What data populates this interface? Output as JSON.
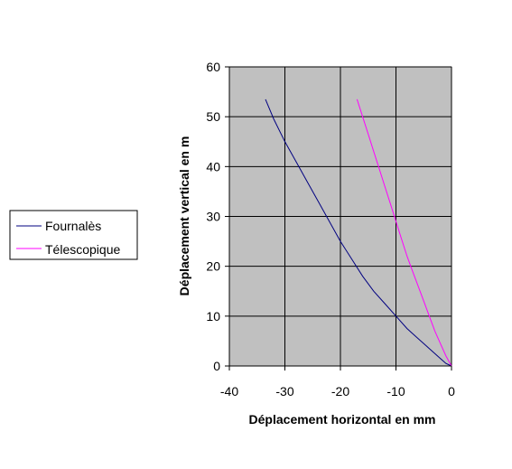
{
  "chart_data": {
    "type": "line",
    "xlabel": "Déplacement horizontal en mm",
    "ylabel": "Déplacement vertical en m",
    "xlim": [
      -40,
      0
    ],
    "ylim": [
      0,
      60
    ],
    "x_ticks": [
      -40,
      -30,
      -20,
      -10,
      0
    ],
    "y_ticks": [
      0,
      10,
      20,
      30,
      40,
      50,
      60
    ],
    "grid": true,
    "plot_background": "#c0c0c0",
    "legend_position": "left",
    "series": [
      {
        "name": "Fournalès",
        "color": "#000080",
        "points": [
          [
            0,
            0
          ],
          [
            -1,
            0.5
          ],
          [
            -2,
            1.5
          ],
          [
            -4,
            3.5
          ],
          [
            -6,
            5.5
          ],
          [
            -8,
            7.5
          ],
          [
            -10,
            10
          ],
          [
            -12,
            12.5
          ],
          [
            -14,
            15
          ],
          [
            -16,
            18
          ],
          [
            -18,
            21.5
          ],
          [
            -20,
            25
          ],
          [
            -22,
            29
          ],
          [
            -24,
            33
          ],
          [
            -26,
            37
          ],
          [
            -28,
            41
          ],
          [
            -30,
            45
          ],
          [
            -32,
            49.5
          ],
          [
            -33.5,
            53.5
          ]
        ]
      },
      {
        "name": "Télescopique",
        "color": "#ff00ff",
        "points": [
          [
            0,
            0
          ],
          [
            -1,
            2
          ],
          [
            -2,
            4.5
          ],
          [
            -3,
            7
          ],
          [
            -4,
            10
          ],
          [
            -5,
            13
          ],
          [
            -6,
            16
          ],
          [
            -7,
            19
          ],
          [
            -8,
            22
          ],
          [
            -9,
            25.5
          ],
          [
            -10,
            29
          ],
          [
            -11,
            32.5
          ],
          [
            -12,
            36
          ],
          [
            -13,
            39.5
          ],
          [
            -14,
            43
          ],
          [
            -15,
            46.5
          ],
          [
            -16,
            50
          ],
          [
            -17,
            53.5
          ]
        ]
      }
    ]
  }
}
